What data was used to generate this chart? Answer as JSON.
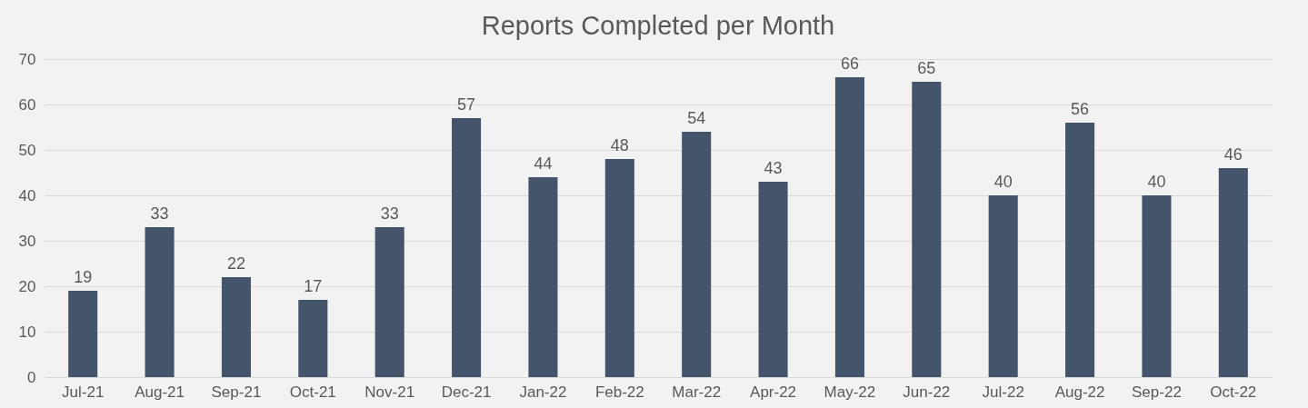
{
  "chart_data": {
    "type": "bar",
    "title": "Reports Completed per Month",
    "categories": [
      "Jul-21",
      "Aug-21",
      "Sep-21",
      "Oct-21",
      "Nov-21",
      "Dec-21",
      "Jan-22",
      "Feb-22",
      "Mar-22",
      "Apr-22",
      "May-22",
      "Jun-22",
      "Jul-22",
      "Aug-22",
      "Sep-22",
      "Oct-22"
    ],
    "values": [
      19,
      33,
      22,
      17,
      33,
      57,
      44,
      48,
      54,
      43,
      66,
      65,
      40,
      56,
      40,
      46
    ],
    "color": "#44546a",
    "ylim": [
      0,
      70
    ],
    "yticks": [
      0,
      10,
      20,
      30,
      40,
      50,
      60,
      70
    ],
    "grid": "y",
    "data_labels": true
  }
}
